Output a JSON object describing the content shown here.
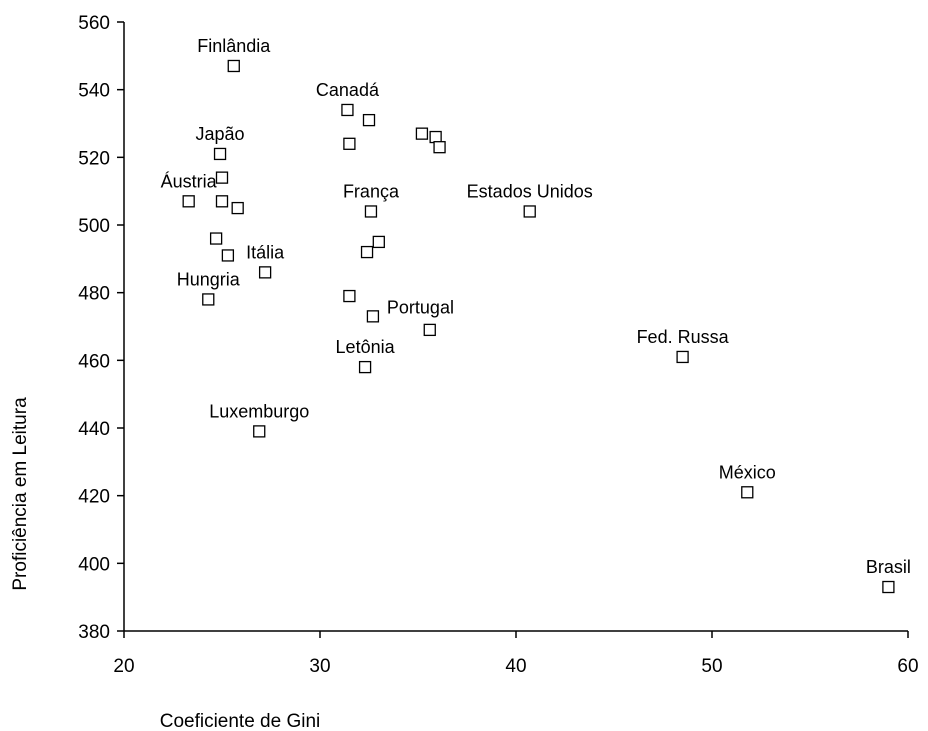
{
  "chart_data": {
    "type": "scatter",
    "xlabel": "Coeficiente de Gini",
    "ylabel": "Proficiência em Leitura",
    "xlim": [
      20,
      60
    ],
    "ylim": [
      380,
      560
    ],
    "xticks": [
      20,
      30,
      40,
      50,
      60
    ],
    "yticks": [
      380,
      400,
      420,
      440,
      460,
      480,
      500,
      520,
      540,
      560
    ],
    "grid": false,
    "marker": "hollow-square",
    "colors": {
      "marker_stroke": "#000000",
      "axis": "#000000",
      "background": "#ffffff"
    },
    "points": [
      {
        "x": 25.6,
        "y": 547,
        "label": "Finlândia",
        "label_pos": "above"
      },
      {
        "x": 31.4,
        "y": 534,
        "label": "Canadá",
        "label_pos": "above"
      },
      {
        "x": 32.5,
        "y": 531
      },
      {
        "x": 31.5,
        "y": 524
      },
      {
        "x": 35.2,
        "y": 527
      },
      {
        "x": 35.9,
        "y": 526
      },
      {
        "x": 36.1,
        "y": 523
      },
      {
        "x": 24.9,
        "y": 521,
        "label": "Japão",
        "label_pos": "above"
      },
      {
        "x": 25.0,
        "y": 514
      },
      {
        "x": 23.3,
        "y": 507,
        "label": "Áustria",
        "label_pos": "above"
      },
      {
        "x": 25.0,
        "y": 507
      },
      {
        "x": 25.8,
        "y": 505
      },
      {
        "x": 32.6,
        "y": 504,
        "label": "França",
        "label_pos": "above"
      },
      {
        "x": 40.7,
        "y": 504,
        "label": "Estados Unidos",
        "label_pos": "above"
      },
      {
        "x": 24.7,
        "y": 496
      },
      {
        "x": 33.0,
        "y": 495
      },
      {
        "x": 32.4,
        "y": 492
      },
      {
        "x": 25.3,
        "y": 491
      },
      {
        "x": 27.2,
        "y": 486,
        "label": "Itália",
        "label_pos": "above"
      },
      {
        "x": 24.3,
        "y": 478,
        "label": "Hungria",
        "label_pos": "above"
      },
      {
        "x": 31.5,
        "y": 479
      },
      {
        "x": 32.7,
        "y": 473,
        "label": "Portugal",
        "label_pos": "above-right"
      },
      {
        "x": 35.6,
        "y": 469
      },
      {
        "x": 32.3,
        "y": 458,
        "label": "Letônia",
        "label_pos": "above"
      },
      {
        "x": 48.5,
        "y": 461,
        "label": "Fed. Russa",
        "label_pos": "above"
      },
      {
        "x": 26.9,
        "y": 439,
        "label": "Luxemburgo",
        "label_pos": "above"
      },
      {
        "x": 51.8,
        "y": 421,
        "label": "México",
        "label_pos": "above"
      },
      {
        "x": 59.0,
        "y": 393,
        "label": "Brasil",
        "label_pos": "above"
      }
    ]
  }
}
